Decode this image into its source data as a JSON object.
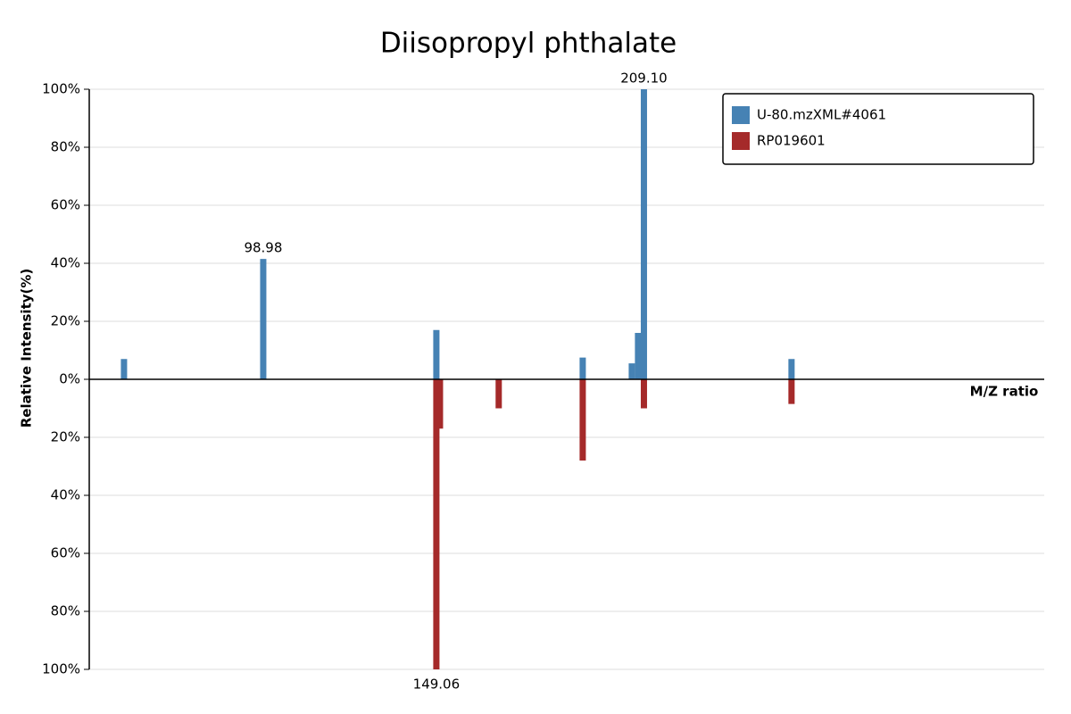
{
  "chart_data": {
    "type": "mirror-bar",
    "title": "Diisopropyl phthalate",
    "x_label": "M/Z ratio",
    "y_label": "Relative Intensity(%)",
    "xlim": [
      48.65,
      324.9
    ],
    "ylim": [
      -100,
      100
    ],
    "yticks": [
      {
        "value": 100,
        "label": "100%"
      },
      {
        "value": 80,
        "label": "80%"
      },
      {
        "value": 60,
        "label": "60%"
      },
      {
        "value": 40,
        "label": "40%"
      },
      {
        "value": 20,
        "label": "20%"
      },
      {
        "value": 0,
        "label": "0%"
      },
      {
        "value": -20,
        "label": "20%"
      },
      {
        "value": -40,
        "label": "40%"
      },
      {
        "value": -60,
        "label": "60%"
      },
      {
        "value": -80,
        "label": "80%"
      },
      {
        "value": -100,
        "label": "100%"
      }
    ],
    "grid": true,
    "legend": "top-right",
    "series": [
      {
        "name": "U-80.mzXML#4061",
        "color": "#4682b4",
        "x": [
          58.7,
          98.98,
          149.06,
          191.4,
          205.6,
          207.4,
          209.1,
          251.8
        ],
        "values": [
          7,
          41.5,
          17,
          7.5,
          5.5,
          16,
          100,
          7
        ],
        "labels": [
          null,
          "98.98",
          null,
          null,
          null,
          null,
          "209.10",
          null
        ]
      },
      {
        "name": "RP019601",
        "color": "#a52a2a",
        "x": [
          149.06,
          150.1,
          167.1,
          191.4,
          209.1,
          251.8
        ],
        "values": [
          -100,
          -17,
          -10,
          -28,
          -10,
          -8.5
        ],
        "labels": [
          "149.06",
          null,
          null,
          null,
          null,
          null
        ]
      }
    ]
  }
}
